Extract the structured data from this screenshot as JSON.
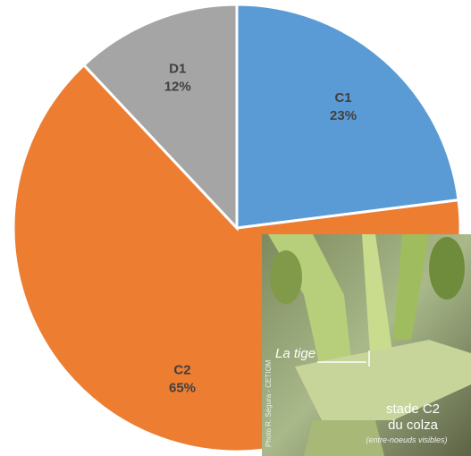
{
  "chart_data": {
    "type": "pie",
    "categories": [
      "C1",
      "C2",
      "D1"
    ],
    "values": [
      23,
      65,
      12
    ],
    "value_labels": [
      "23%",
      "65%",
      "12%"
    ],
    "colors": [
      "#5b9bd5",
      "#ed7d31",
      "#a5a5a5"
    ]
  },
  "photo": {
    "label": "La tige",
    "caption_line1": "stade C2",
    "caption_line2": "du colza",
    "caption_line3": "(entre-noeuds visibles)",
    "credit": "Photo R. Ségura - CETIOM"
  }
}
